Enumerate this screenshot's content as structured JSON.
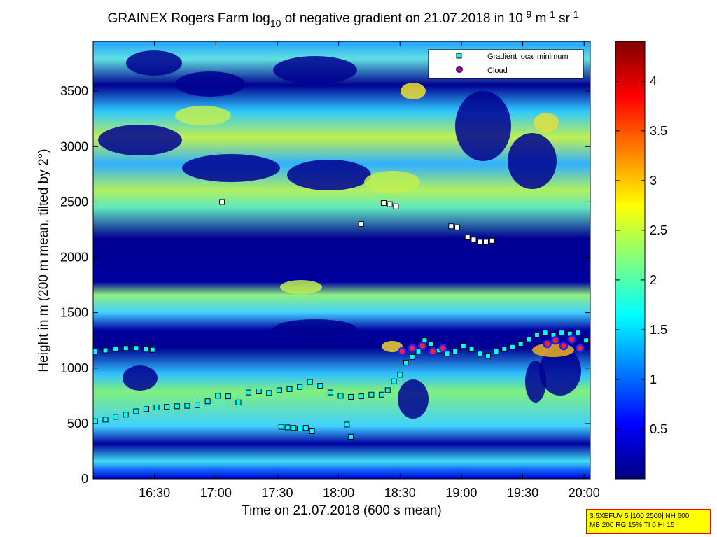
{
  "chart_data": {
    "type": "heatmap",
    "title": {
      "pre": "GRAINEX Rogers Farm log",
      "sub": "10",
      "mid1": " of negative gradient on 21.07.2018 in 10",
      "sup1": "-9",
      "mid2": " m",
      "sup2": "-1",
      "mid3": " sr",
      "sup3": "-1"
    },
    "xlabel": "Time on 21.07.2018 (600 s mean)",
    "ylabel": "Height in m (200 m mean, tilted by 2°)",
    "x_ticks": [
      "16:30",
      "17:00",
      "17:30",
      "18:00",
      "18:30",
      "19:00",
      "19:30",
      "20:00"
    ],
    "x_tick_minutes": [
      990,
      1020,
      1050,
      1080,
      1110,
      1140,
      1170,
      1200
    ],
    "xlim_minutes": [
      960,
      1203
    ],
    "y_ticks": [
      "0",
      "500",
      "1000",
      "1500",
      "2000",
      "2500",
      "3000",
      "3500"
    ],
    "y_tick_values": [
      0,
      500,
      1000,
      1500,
      2000,
      2500,
      3000,
      3500
    ],
    "ylim": [
      0,
      3950
    ],
    "colorbar": {
      "ticks": [
        "0.5",
        "1",
        "1.5",
        "2",
        "2.5",
        "3",
        "3.5",
        "4"
      ],
      "tick_values": [
        0.5,
        1,
        1.5,
        2,
        2.5,
        3,
        3.5,
        4
      ],
      "range": [
        0,
        4.4
      ],
      "colormap": "jet"
    },
    "legend": {
      "position": "top-right",
      "entries": [
        {
          "label": "Gradient local minimum",
          "marker": "square",
          "color": "#00ffff"
        },
        {
          "label": "Cloud",
          "marker": "circle",
          "color": "#ff0000"
        }
      ]
    },
    "series": [
      {
        "name": "Gradient local minimum",
        "points": [
          [
            961,
            520
          ],
          [
            966,
            535
          ],
          [
            971,
            560
          ],
          [
            976,
            580
          ],
          [
            981,
            610
          ],
          [
            986,
            630
          ],
          [
            991,
            645
          ],
          [
            996,
            650
          ],
          [
            1001,
            655
          ],
          [
            1006,
            660
          ],
          [
            1011,
            665
          ],
          [
            1016,
            700
          ],
          [
            1021,
            750
          ],
          [
            1026,
            745
          ],
          [
            1031,
            690
          ],
          [
            1036,
            780
          ],
          [
            1041,
            790
          ],
          [
            1046,
            775
          ],
          [
            1051,
            800
          ],
          [
            1056,
            810
          ],
          [
            1061,
            830
          ],
          [
            1066,
            875
          ],
          [
            1071,
            840
          ],
          [
            1076,
            780
          ],
          [
            1081,
            750
          ],
          [
            1086,
            740
          ],
          [
            1091,
            745
          ],
          [
            1096,
            760
          ],
          [
            1101,
            760
          ],
          [
            1104,
            800
          ],
          [
            1107,
            880
          ],
          [
            1110,
            940
          ],
          [
            1113,
            1050
          ],
          [
            1116,
            1100
          ],
          [
            1119,
            1150
          ],
          [
            1122,
            1250
          ],
          [
            1125,
            1220
          ],
          [
            1129,
            1160
          ],
          [
            1133,
            1130
          ],
          [
            1137,
            1150
          ],
          [
            1141,
            1200
          ],
          [
            1145,
            1170
          ],
          [
            1149,
            1130
          ],
          [
            1153,
            1110
          ],
          [
            1157,
            1150
          ],
          [
            1161,
            1170
          ],
          [
            1165,
            1190
          ],
          [
            1169,
            1220
          ],
          [
            1173,
            1260
          ],
          [
            1177,
            1300
          ],
          [
            1181,
            1320
          ],
          [
            1185,
            1300
          ],
          [
            1189,
            1320
          ],
          [
            1193,
            1310
          ],
          [
            1197,
            1320
          ],
          [
            1201,
            1250
          ],
          [
            961,
            1150
          ],
          [
            966,
            1160
          ],
          [
            971,
            1170
          ],
          [
            976,
            1180
          ],
          [
            981,
            1180
          ],
          [
            986,
            1175
          ],
          [
            989,
            1165
          ],
          [
            1052,
            470
          ],
          [
            1055,
            465
          ],
          [
            1058,
            460
          ],
          [
            1061,
            455
          ],
          [
            1064,
            460
          ],
          [
            1067,
            430
          ],
          [
            1084,
            490
          ],
          [
            1086,
            380
          ],
          [
            1023,
            2500
          ],
          [
            1091,
            2300
          ],
          [
            1102,
            2490
          ],
          [
            1105,
            2480
          ],
          [
            1108,
            2460
          ],
          [
            1135,
            2280
          ],
          [
            1138,
            2270
          ],
          [
            1143,
            2180
          ],
          [
            1146,
            2160
          ],
          [
            1149,
            2140
          ],
          [
            1152,
            2140
          ],
          [
            1155,
            2150
          ]
        ]
      },
      {
        "name": "Cloud",
        "points": [
          [
            1111,
            1150
          ],
          [
            1116,
            1180
          ],
          [
            1121,
            1200
          ],
          [
            1126,
            1150
          ],
          [
            1131,
            1180
          ],
          [
            1182,
            1220
          ],
          [
            1186,
            1250
          ],
          [
            1190,
            1200
          ],
          [
            1194,
            1260
          ],
          [
            1198,
            1180
          ]
        ]
      }
    ]
  },
  "info_box": {
    "line1": "3.5XEFUV 5 [100 2500] NH 600",
    "line2": "MB 200 RG 15% TI 0 HI 15"
  }
}
